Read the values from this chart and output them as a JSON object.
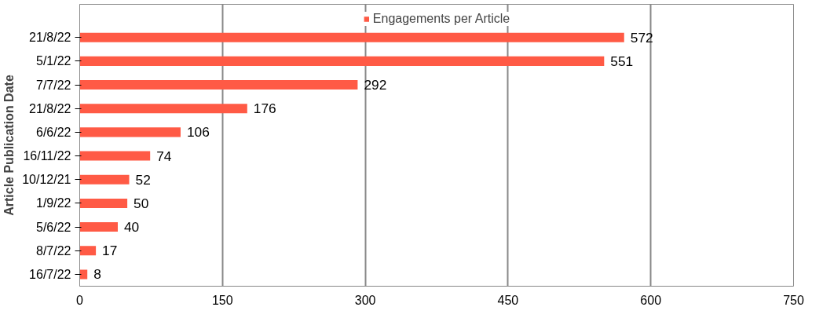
{
  "chart_data": {
    "type": "bar",
    "orientation": "horizontal",
    "ylabel": "Article Publication Date",
    "categories": [
      "21/8/22",
      "5/1/22",
      "7/7/22",
      "21/8/22",
      "6/6/22",
      "16/11/22",
      "10/12/21",
      "1/9/22",
      "5/6/22",
      "8/7/22",
      "16/7/22"
    ],
    "series": [
      {
        "name": "Engagements per Article",
        "color": "#ff5a45",
        "values": [
          572,
          551,
          292,
          176,
          106,
          74,
          52,
          50,
          40,
          17,
          8
        ]
      }
    ],
    "xlim": [
      0,
      750
    ],
    "xticks": [
      0,
      150,
      300,
      450,
      600,
      750
    ],
    "grid": "x",
    "legend": "top",
    "data_labels": true
  }
}
